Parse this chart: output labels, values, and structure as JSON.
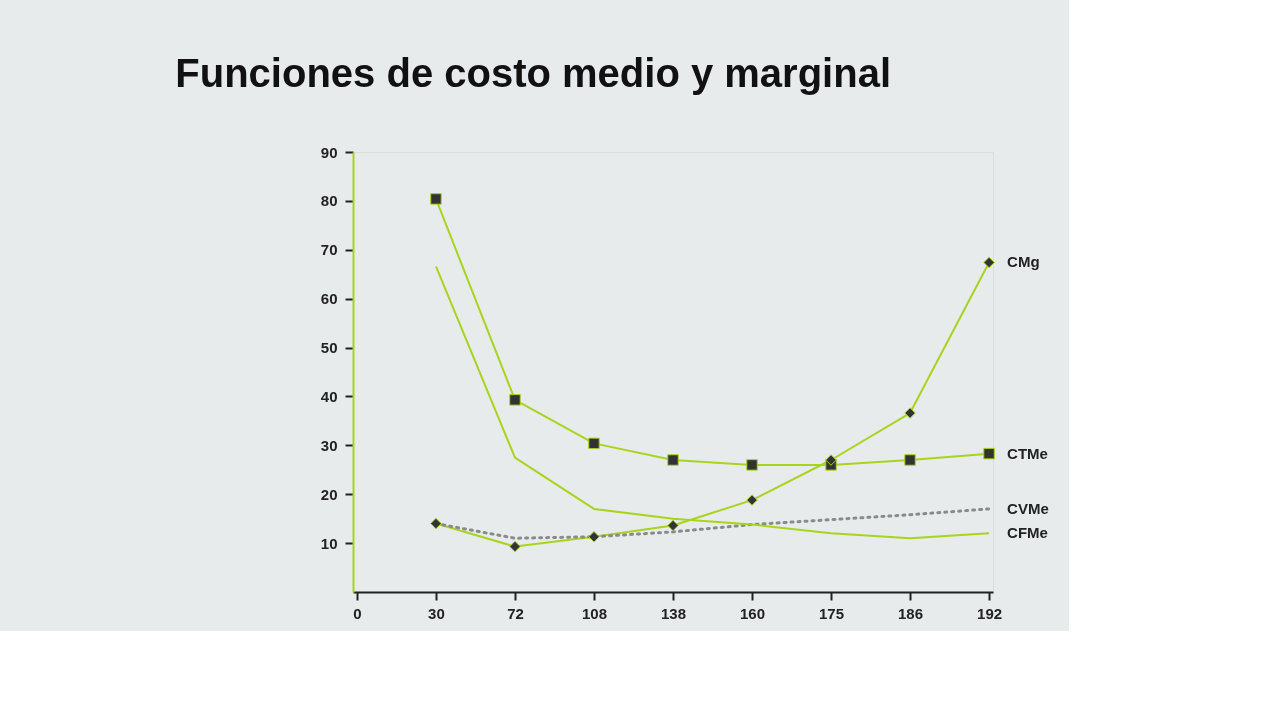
{
  "chart_data": {
    "type": "line",
    "title": "Funciones de costo medio y marginal",
    "categories": [
      "0",
      "30",
      "72",
      "108",
      "138",
      "160",
      "175",
      "186",
      "192"
    ],
    "ylim": [
      0,
      90
    ],
    "yticks": [
      10,
      20,
      30,
      40,
      50,
      60,
      70,
      80,
      90
    ],
    "grid": false,
    "series": [
      {
        "name": "CMg",
        "color": "#a8d41e",
        "marker": "diamond",
        "line_style": "solid",
        "values": [
          null,
          14,
          9.3,
          11.3,
          13.6,
          18.8,
          27,
          36.6,
          67.4
        ]
      },
      {
        "name": "CTMe",
        "color": "#a8d41e",
        "marker": "square",
        "line_style": "solid",
        "values": [
          null,
          80.4,
          39.3,
          30.4,
          27,
          26,
          26,
          27,
          28.3
        ]
      },
      {
        "name": "CVMe",
        "color": "#8a8a8a",
        "marker": "none",
        "line_style": "dotted",
        "values": [
          null,
          14,
          11,
          11.3,
          12.3,
          13.8,
          14.8,
          15.8,
          17
        ]
      },
      {
        "name": "CFMe",
        "color": "#a8d41e",
        "marker": "none",
        "line_style": "solid",
        "values": [
          null,
          66.6,
          27.5,
          17,
          15,
          13.8,
          12,
          11,
          12
        ]
      }
    ]
  }
}
